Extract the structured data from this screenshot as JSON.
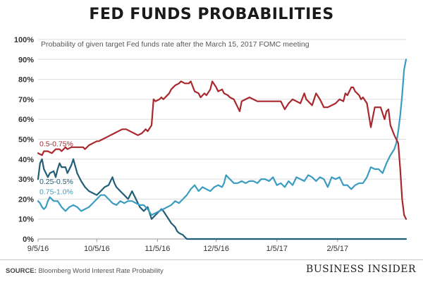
{
  "header": {
    "title": "FED FUNDS PROBABILITIES"
  },
  "footer": {
    "source_label": "SOURCE:",
    "source_text": "Bloomberg World Interest Rate Probability",
    "brand": "BUSINESS INSIDER"
  },
  "chart_data": {
    "type": "line",
    "subtitle": "Probability of given target Fed funds rate after the March 15, 2017 FOMC meeting",
    "xlabel": "",
    "ylabel": "",
    "x_ticks": [
      "9/5/16",
      "10/5/16",
      "11/5/16",
      "12/5/16",
      "1/5/17",
      "2/5/17"
    ],
    "x_unit": "days since 9/5/16",
    "x_range": [
      0,
      188
    ],
    "ylim": [
      0,
      100
    ],
    "y_ticks": [
      0,
      10,
      20,
      30,
      40,
      50,
      60,
      70,
      80,
      90,
      100
    ],
    "y_format": "percent",
    "grid": "horizontal",
    "series": [
      {
        "name": "0.5-0.75%",
        "color": "#a8282d",
        "x": [
          0,
          2,
          3,
          5,
          7,
          9,
          11,
          12,
          14,
          15,
          17,
          20,
          23,
          24,
          26,
          28,
          30,
          31,
          33,
          35,
          37,
          39,
          41,
          43,
          45,
          47,
          49,
          51,
          53,
          55,
          56,
          58,
          59,
          60,
          62,
          63,
          64,
          66,
          67,
          68,
          70,
          72,
          73,
          75,
          77,
          78,
          80,
          82,
          83,
          85,
          86,
          88,
          89,
          91,
          92,
          94,
          95,
          97,
          98,
          100,
          102,
          103,
          104,
          106,
          108,
          110,
          112,
          114,
          116,
          118,
          120,
          121,
          122,
          124,
          126,
          128,
          130,
          132,
          134,
          136,
          137,
          138,
          140,
          142,
          144,
          146,
          148,
          150,
          152,
          154,
          156,
          157,
          158,
          160,
          161,
          162,
          164,
          165,
          166,
          168,
          170,
          172,
          173,
          175,
          177,
          178,
          179,
          180,
          182,
          184,
          185,
          186,
          187,
          188
        ],
        "values": [
          43,
          42,
          44,
          44,
          43,
          45,
          45,
          44,
          46,
          45,
          46,
          46,
          46,
          45,
          47,
          48,
          49,
          49,
          50,
          51,
          52,
          53,
          54,
          55,
          55,
          54,
          53,
          52,
          53,
          55,
          54,
          57,
          70,
          69,
          70,
          71,
          70,
          72,
          73,
          75,
          77,
          78,
          79,
          78,
          78,
          79,
          74,
          73,
          71,
          73,
          72,
          75,
          79,
          76,
          74,
          75,
          73,
          72,
          71,
          70,
          66,
          64,
          69,
          70,
          71,
          70,
          69,
          69,
          69,
          69,
          69,
          69,
          69,
          69,
          65,
          68,
          70,
          69,
          68,
          73,
          70,
          69,
          67,
          73,
          70,
          66,
          66,
          67,
          68,
          70,
          69,
          73,
          72,
          76,
          76,
          74,
          72,
          70,
          71,
          68,
          56,
          66,
          66,
          66,
          60,
          64,
          65,
          57,
          52,
          48,
          35,
          20,
          12,
          10
        ]
      },
      {
        "name": "0.25-0.5%",
        "color": "#235e78",
        "x": [
          0,
          1,
          2,
          3,
          5,
          6,
          8,
          9,
          10,
          11,
          12,
          14,
          15,
          17,
          18,
          20,
          22,
          24,
          26,
          28,
          30,
          32,
          34,
          36,
          38,
          39,
          40,
          42,
          44,
          46,
          48,
          50,
          52,
          54,
          56,
          58,
          60,
          62,
          63,
          64,
          66,
          68,
          70,
          71,
          72,
          74,
          75,
          76,
          78,
          80,
          82,
          84,
          86,
          90,
          100,
          110,
          120,
          130,
          140,
          150,
          160,
          170,
          180,
          188
        ],
        "values": [
          30,
          38,
          40,
          35,
          31,
          33,
          34,
          31,
          35,
          38,
          36,
          36,
          33,
          37,
          40,
          33,
          29,
          26,
          24,
          23,
          22,
          24,
          26,
          27,
          31,
          28,
          26,
          24,
          22,
          20,
          24,
          20,
          16,
          14,
          16,
          10,
          12,
          14,
          15,
          14,
          11,
          8,
          6,
          4,
          3,
          2,
          1,
          0,
          0,
          0,
          0,
          0,
          0,
          0,
          0,
          0,
          0,
          0,
          0,
          0,
          0,
          0,
          0,
          0
        ]
      },
      {
        "name": "0.75-1.0%",
        "color": "#3a9cc0",
        "x": [
          0,
          1,
          2,
          3,
          4,
          5,
          6,
          8,
          10,
          12,
          14,
          16,
          18,
          20,
          22,
          24,
          26,
          28,
          30,
          32,
          34,
          36,
          38,
          40,
          42,
          44,
          46,
          48,
          50,
          52,
          54,
          56,
          58,
          60,
          62,
          64,
          66,
          68,
          70,
          72,
          74,
          76,
          78,
          80,
          82,
          84,
          86,
          88,
          90,
          92,
          94,
          95,
          96,
          98,
          100,
          102,
          104,
          106,
          108,
          110,
          112,
          114,
          116,
          118,
          120,
          122,
          124,
          126,
          128,
          130,
          132,
          134,
          136,
          138,
          140,
          142,
          144,
          146,
          148,
          150,
          152,
          154,
          156,
          158,
          160,
          162,
          164,
          166,
          168,
          170,
          172,
          174,
          176,
          178,
          180,
          182,
          183,
          184,
          185,
          186,
          187,
          188
        ],
        "values": [
          19,
          18,
          16,
          15,
          16,
          19,
          21,
          19,
          19,
          16,
          14,
          16,
          17,
          16,
          14,
          15,
          16,
          18,
          20,
          22,
          22,
          20,
          18,
          17,
          19,
          18,
          19,
          19,
          18,
          17,
          17,
          15,
          12,
          13,
          14,
          15,
          16,
          17,
          19,
          18,
          20,
          22,
          25,
          27,
          24,
          26,
          25,
          24,
          26,
          27,
          26,
          28,
          32,
          30,
          28,
          28,
          29,
          28,
          29,
          29,
          28,
          30,
          30,
          29,
          31,
          27,
          28,
          26,
          29,
          27,
          31,
          30,
          29,
          32,
          31,
          29,
          31,
          30,
          26,
          31,
          30,
          31,
          27,
          27,
          25,
          27,
          28,
          28,
          31,
          36,
          35,
          35,
          33,
          38,
          42,
          45,
          48,
          54,
          62,
          72,
          85,
          90
        ]
      }
    ]
  }
}
